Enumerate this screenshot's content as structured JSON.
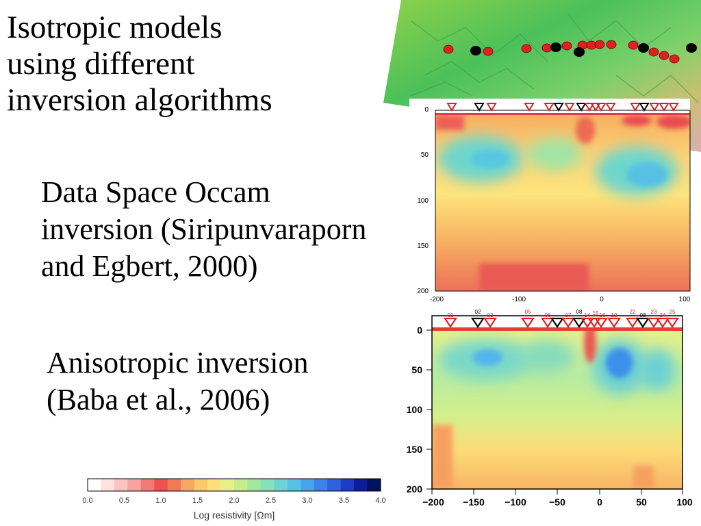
{
  "title_lines": [
    "Isotropic models",
    "using different",
    "inversion algorithms"
  ],
  "method1": {
    "lines": [
      "Data Space Occam",
      "inversion (Siripunvaraporn",
      "and Egbert, 2000)"
    ],
    "y_ticks": [
      "0",
      "50",
      "100",
      "150",
      "200"
    ],
    "x_ticks": [
      "-200",
      "-100",
      "0",
      "100"
    ]
  },
  "method2": {
    "lines": [
      "Anisotropic inversion",
      "(Baba et al., 2006)"
    ],
    "y_ticks": [
      "0",
      "50",
      "100",
      "150",
      "200"
    ],
    "x_ticks": [
      "−200",
      "−150",
      "−100",
      "−50",
      "0",
      "50",
      "100"
    ],
    "station_labels": [
      "01",
      "02",
      "03",
      "05",
      "06",
      "07",
      "08",
      "14",
      "15",
      "16",
      "19",
      "22",
      "08",
      "23",
      "24",
      "25"
    ]
  },
  "colorbar": {
    "label": "Log resistivity [Ωm]",
    "ticks": [
      "0.0",
      "0.5",
      "1.0",
      "1.5",
      "2.0",
      "2.5",
      "3.0",
      "3.5",
      "4.0"
    ],
    "colors": [
      "#ffffff",
      "#fde2e0",
      "#fbc4c0",
      "#f8a3a0",
      "#f27a78",
      "#ec5252",
      "#f07a58",
      "#f6a862",
      "#fbc86a",
      "#fce07a",
      "#eaee86",
      "#c6ee8a",
      "#a2e8a0",
      "#86e0b8",
      "#6cd4d4",
      "#56c0e8",
      "#48a4ee",
      "#3c84ea",
      "#2c62dc",
      "#1c3cc4",
      "#0e1c98",
      "#041060"
    ]
  },
  "map_icon": "relief-map-icon"
}
